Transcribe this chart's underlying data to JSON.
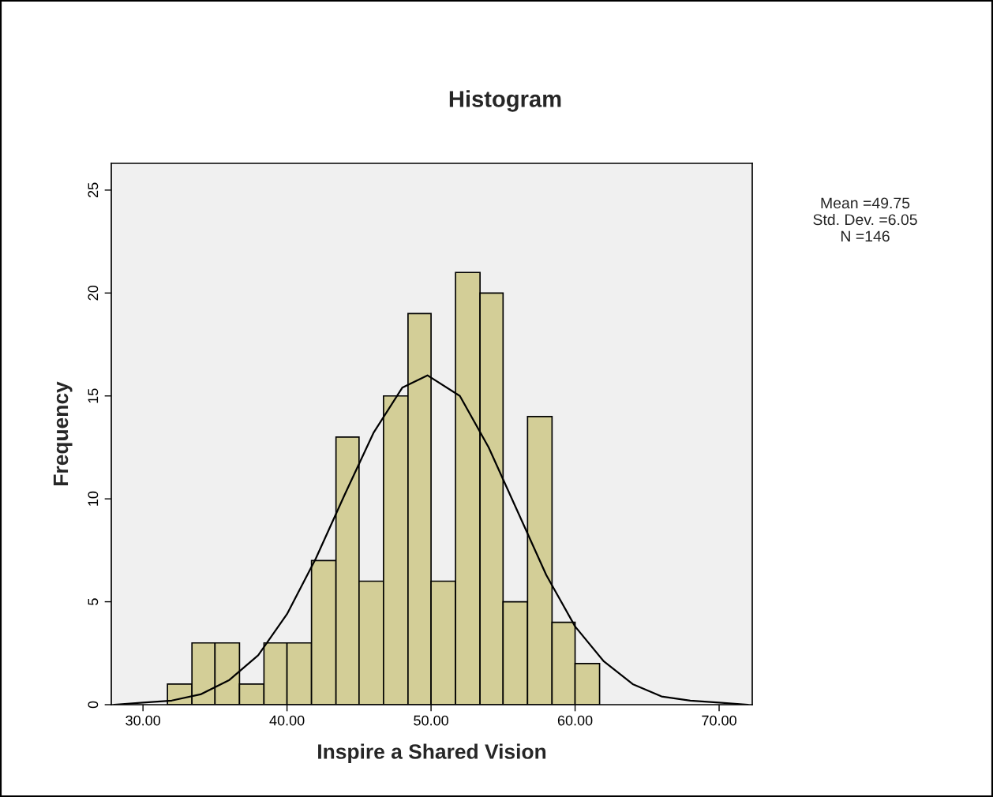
{
  "chart_data": {
    "type": "histogram",
    "title": "Histogram",
    "xlabel": "Inspire a Shared Vision",
    "ylabel": "Frequency",
    "bins": [
      31.7,
      33.4,
      35.0,
      36.7,
      38.4,
      40.0,
      41.7,
      43.4,
      45.0,
      46.7,
      48.4,
      50.0,
      51.7,
      53.4,
      55.0,
      56.7,
      58.4,
      60.0,
      61.7
    ],
    "values": [
      1,
      3,
      3,
      1,
      3,
      3,
      7,
      13,
      6,
      15,
      19,
      6,
      21,
      20,
      5,
      14,
      4,
      2
    ],
    "color": "#d3ce97",
    "series": [
      {
        "type": "line",
        "color": "#000000",
        "x": [
          28,
          30,
          32,
          34,
          36,
          38,
          40,
          42,
          44,
          46,
          48,
          49.75,
          52,
          54,
          56,
          58,
          60,
          62,
          64,
          66,
          68,
          70,
          72
        ],
        "values": [
          0.0,
          0.1,
          0.2,
          0.5,
          1.2,
          2.4,
          4.4,
          7.1,
          10.2,
          13.2,
          15.4,
          16.0,
          15.0,
          12.5,
          9.4,
          6.3,
          3.8,
          2.1,
          1.0,
          0.4,
          0.2,
          0.1,
          0.0
        ]
      }
    ],
    "xlim": [
      27.8,
      72.3
    ],
    "xticks": [
      {
        "value": 30,
        "label": "30.00"
      },
      {
        "value": 40,
        "label": "40.00"
      },
      {
        "value": 50,
        "label": "50.00"
      },
      {
        "value": 60,
        "label": "60.00"
      },
      {
        "value": 70,
        "label": "70.00"
      }
    ],
    "ylim": [
      0,
      26.3
    ],
    "yticks": [
      0,
      5,
      10,
      15,
      20,
      25
    ],
    "annotations": [
      "Mean =49.75",
      "Std. Dev. =6.05",
      "N =146"
    ],
    "grid": false,
    "legend": false
  }
}
